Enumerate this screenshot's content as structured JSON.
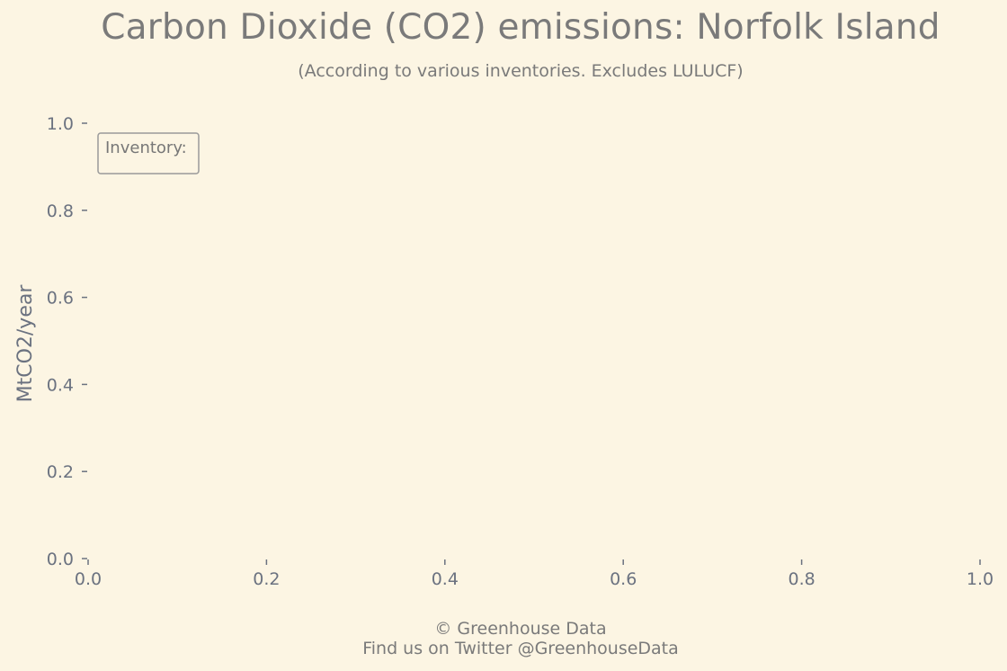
{
  "chart_data": {
    "type": "line",
    "title": "Carbon Dioxide (CO2) emissions: Norfolk Island",
    "subtitle": "(According to various inventories. Excludes LULUCF)",
    "xlabel": "",
    "ylabel": "MtCO2/year",
    "xlim": [
      0.0,
      1.0
    ],
    "ylim": [
      0.0,
      1.0
    ],
    "x_ticks": [
      "0.0",
      "0.2",
      "0.4",
      "0.6",
      "0.8",
      "1.0"
    ],
    "y_ticks": [
      "0.0",
      "0.2",
      "0.4",
      "0.6",
      "0.8",
      "1.0"
    ],
    "series": [],
    "legend": {
      "title": "Inventory:",
      "placement": "top-left",
      "entries": []
    },
    "grid": false
  },
  "footer": {
    "copyright": "© Greenhouse Data",
    "twitter": "Find us on Twitter @GreenhouseData"
  },
  "colors": {
    "background": "#fcf5e3",
    "text": "#7a7a7a",
    "axis": "#6b7280"
  }
}
